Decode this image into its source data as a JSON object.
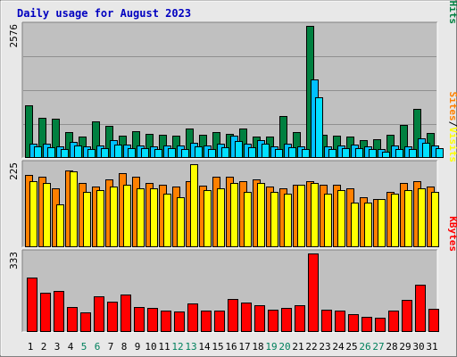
{
  "title": "Daily usage for August 2023",
  "colors": {
    "background": "#e8e8e8",
    "panel": "#c0c0c0",
    "title": "#0000c0",
    "hits": "#008040",
    "files": "#00c0ff",
    "pages": "#00e0ff",
    "visits": "#ffff00",
    "sites": "#ff8000",
    "kbytes": "#ff0000",
    "weekday_label": "#000000",
    "weekend_label": "#00805c"
  },
  "chart_data": [
    {
      "type": "bar",
      "panel": "hits-files-pages",
      "axis_max_label": "2576",
      "legend": [
        "Pages",
        "/",
        "Files",
        "/",
        "Hits"
      ],
      "ylim": [
        0,
        2576
      ],
      "categories": [
        "1",
        "2",
        "3",
        "4",
        "5",
        "6",
        "7",
        "8",
        "9",
        "10",
        "11",
        "12",
        "13",
        "14",
        "15",
        "16",
        "17",
        "18",
        "19",
        "20",
        "21",
        "22",
        "23",
        "24",
        "25",
        "26",
        "27",
        "28",
        "29",
        "30",
        "31"
      ],
      "weekend_days": [
        "5",
        "6",
        "12",
        "13",
        "19",
        "20",
        "26",
        "27"
      ],
      "series": [
        {
          "name": "Hits",
          "values": [
            1030,
            790,
            770,
            510,
            420,
            710,
            620,
            440,
            530,
            470,
            460,
            430,
            570,
            450,
            510,
            470,
            570,
            420,
            410,
            810,
            500,
            2576,
            460,
            430,
            410,
            350,
            360,
            460,
            650,
            960,
            480
          ]
        },
        {
          "name": "Files",
          "values": [
            280,
            270,
            230,
            310,
            220,
            250,
            340,
            260,
            250,
            220,
            250,
            240,
            300,
            240,
            280,
            430,
            270,
            350,
            230,
            280,
            230,
            1530,
            230,
            250,
            260,
            220,
            170,
            240,
            220,
            380,
            250
          ]
        },
        {
          "name": "Pages",
          "values": [
            220,
            210,
            180,
            240,
            170,
            190,
            260,
            200,
            190,
            170,
            190,
            180,
            230,
            180,
            210,
            330,
            210,
            270,
            180,
            210,
            180,
            1180,
            180,
            190,
            200,
            170,
            130,
            180,
            170,
            290,
            190
          ]
        }
      ]
    },
    {
      "type": "bar",
      "panel": "visits-sites",
      "axis_max_label": "225",
      "legend": [
        "Sites",
        "/",
        "Visits"
      ],
      "ylim": [
        0,
        225
      ],
      "categories": [
        "1",
        "2",
        "3",
        "4",
        "5",
        "6",
        "7",
        "8",
        "9",
        "10",
        "11",
        "12",
        "13",
        "14",
        "15",
        "16",
        "17",
        "18",
        "19",
        "20",
        "21",
        "22",
        "23",
        "24",
        "25",
        "26",
        "27",
        "28",
        "29",
        "30",
        "31"
      ],
      "series": [
        {
          "name": "Visits",
          "values": [
            180,
            175,
            115,
            205,
            150,
            155,
            165,
            170,
            160,
            160,
            145,
            135,
            225,
            155,
            160,
            175,
            150,
            175,
            150,
            145,
            170,
            175,
            145,
            155,
            120,
            120,
            130,
            145,
            155,
            160,
            150
          ]
        },
        {
          "name": "Sites",
          "values": [
            195,
            190,
            160,
            208,
            175,
            165,
            185,
            200,
            190,
            175,
            170,
            165,
            180,
            168,
            190,
            190,
            180,
            185,
            165,
            160,
            170,
            180,
            170,
            170,
            160,
            135,
            130,
            150,
            175,
            180,
            165
          ]
        }
      ]
    },
    {
      "type": "bar",
      "panel": "kbytes",
      "axis_max_label": "333",
      "legend": [
        "KBytes"
      ],
      "ylim": [
        0,
        333
      ],
      "categories": [
        "1",
        "2",
        "3",
        "4",
        "5",
        "6",
        "7",
        "8",
        "9",
        "10",
        "11",
        "12",
        "13",
        "14",
        "15",
        "16",
        "17",
        "18",
        "19",
        "20",
        "21",
        "22",
        "23",
        "24",
        "25",
        "26",
        "27",
        "28",
        "29",
        "30",
        "31"
      ],
      "series": [
        {
          "name": "KBytes",
          "values": [
            230,
            168,
            175,
            105,
            83,
            152,
            128,
            160,
            105,
            102,
            91,
            88,
            122,
            90,
            91,
            140,
            123,
            113,
            93,
            101,
            114,
            333,
            96,
            89,
            77,
            64,
            61,
            92,
            135,
            202,
            100
          ]
        }
      ]
    }
  ]
}
